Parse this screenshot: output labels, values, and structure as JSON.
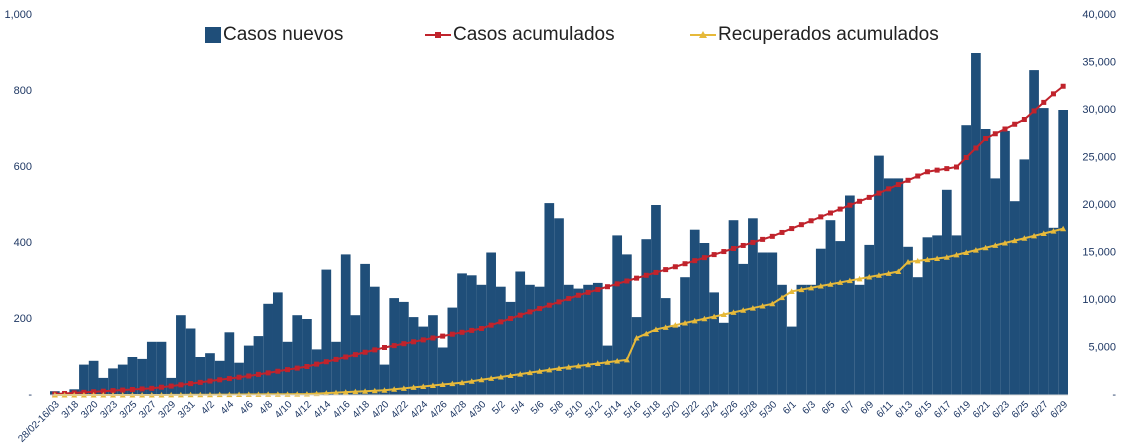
{
  "chart_data": {
    "type": "bar",
    "categories": [
      "28/02-16/03",
      null,
      "3/18",
      null,
      "3/20",
      null,
      "3/23",
      null,
      "3/25",
      null,
      "3/27",
      null,
      "3/29",
      null,
      "3/31",
      null,
      "4/2",
      null,
      "4/4",
      null,
      "4/6",
      null,
      "4/8",
      null,
      "4/10",
      null,
      "4/12",
      null,
      "4/14",
      null,
      "4/16",
      null,
      "4/18",
      null,
      "4/20",
      null,
      "4/22",
      null,
      "4/24",
      null,
      "4/26",
      null,
      "4/28",
      null,
      "4/30",
      null,
      "5/2",
      null,
      "5/4",
      null,
      "5/6",
      null,
      "5/8",
      null,
      "5/10",
      null,
      "5/12",
      null,
      "5/14",
      null,
      "5/16",
      null,
      "5/18",
      null,
      "5/20",
      null,
      "5/22",
      null,
      "5/24",
      null,
      "5/26",
      null,
      "5/28",
      null,
      "5/30",
      null,
      "6/1",
      null,
      "6/3",
      null,
      "6/5",
      null,
      "6/7",
      null,
      "6/9",
      null,
      "6/11",
      null,
      "6/13",
      null,
      "6/15",
      null,
      "6/17",
      null,
      "6/19",
      null,
      "6/21",
      null,
      "6/23",
      null,
      "6/25",
      null,
      "6/27",
      null,
      "6/29"
    ],
    "series": [
      {
        "name": "Casos nuevos",
        "type": "bar",
        "color": "#1f4e79",
        "values": [
          10,
          5,
          15,
          80,
          90,
          45,
          70,
          80,
          100,
          95,
          140,
          140,
          45,
          210,
          175,
          100,
          110,
          90,
          165,
          85,
          130,
          155,
          240,
          270,
          140,
          210,
          200,
          120,
          330,
          140,
          370,
          210,
          345,
          285,
          80,
          255,
          245,
          205,
          180,
          210,
          125,
          230,
          320,
          315,
          290,
          375,
          285,
          245,
          325,
          290,
          285,
          505,
          465,
          290,
          280,
          290,
          295,
          130,
          420,
          370,
          205,
          410,
          500,
          255,
          180,
          310,
          435,
          400,
          270,
          190,
          460,
          345,
          465,
          375,
          375,
          290,
          180,
          290,
          290,
          385,
          460,
          405,
          525,
          290,
          395,
          630,
          570,
          570,
          390,
          310,
          415,
          420,
          540,
          420,
          710,
          900,
          700,
          570,
          695,
          510,
          620,
          855,
          755,
          440,
          750
        ]
      },
      {
        "name": "Casos acumulados",
        "type": "line",
        "marker": "square",
        "axis": "y2",
        "color": "#c0232c",
        "values": [
          100,
          160,
          220,
          280,
          340,
          400,
          460,
          520,
          580,
          640,
          700,
          820,
          940,
          1070,
          1200,
          1330,
          1470,
          1600,
          1730,
          1870,
          2000,
          2170,
          2330,
          2500,
          2670,
          2830,
          3000,
          3250,
          3500,
          3750,
          4000,
          4250,
          4500,
          4750,
          5000,
          5200,
          5400,
          5600,
          5800,
          6000,
          6200,
          6400,
          6600,
          6800,
          7000,
          7350,
          7700,
          8050,
          8400,
          8750,
          9100,
          9450,
          9800,
          10150,
          10500,
          10800,
          11100,
          11400,
          11700,
          12000,
          12300,
          12600,
          12900,
          13200,
          13500,
          13820,
          14140,
          14460,
          14780,
          15100,
          15420,
          15740,
          16060,
          16380,
          16700,
          17110,
          17520,
          17930,
          18340,
          18750,
          19160,
          19570,
          19980,
          20390,
          20800,
          21250,
          21700,
          22150,
          22600,
          23050,
          23500,
          23670,
          23830,
          24000,
          25000,
          26000,
          27000,
          27500,
          28000,
          28500,
          29000,
          29900,
          30800,
          31700,
          32500
        ]
      },
      {
        "name": "Recuperados acumulados",
        "type": "line",
        "marker": "triangle",
        "axis": "y2",
        "color": "#e6b93a",
        "values": [
          0,
          0,
          0,
          0,
          0,
          0,
          0,
          0,
          0,
          0,
          0,
          5,
          10,
          15,
          20,
          25,
          30,
          35,
          40,
          50,
          60,
          70,
          75,
          80,
          85,
          90,
          100,
          150,
          200,
          250,
          300,
          350,
          400,
          450,
          500,
          600,
          700,
          800,
          900,
          1000,
          1100,
          1200,
          1300,
          1450,
          1600,
          1750,
          1900,
          2050,
          2200,
          2350,
          2500,
          2650,
          2800,
          2930,
          3060,
          3190,
          3320,
          3450,
          3580,
          3700,
          6000,
          6450,
          6900,
          7125,
          7350,
          7575,
          7800,
          8025,
          8250,
          8475,
          8700,
          8925,
          9150,
          9375,
          9600,
          10250,
          10900,
          11090,
          11280,
          11470,
          11660,
          11850,
          12040,
          12230,
          12420,
          12610,
          12800,
          13000,
          14000,
          14120,
          14250,
          14370,
          14500,
          14750,
          15000,
          15250,
          15500,
          15750,
          16000,
          16250,
          16500,
          16750,
          17000,
          17250,
          17500
        ]
      }
    ],
    "ylim": [
      0,
      1000
    ],
    "yticks": [
      {
        "value": 0,
        "label": "-"
      },
      200,
      400,
      600,
      800,
      {
        "value": 1000,
        "label": "1,000"
      }
    ],
    "y2lim": [
      0,
      40000
    ],
    "y2ticks": [
      {
        "value": 0,
        "label": "-"
      },
      {
        "value": 5000,
        "label": "5,000"
      },
      {
        "value": 10000,
        "label": "10,000"
      },
      {
        "value": 15000,
        "label": "15,000"
      },
      {
        "value": 20000,
        "label": "20,000"
      },
      {
        "value": 25000,
        "label": "25,000"
      },
      {
        "value": 30000,
        "label": "30,000"
      },
      {
        "value": 35000,
        "label": "35,000"
      },
      {
        "value": 40000,
        "label": "40,000"
      }
    ],
    "legend": "top"
  }
}
